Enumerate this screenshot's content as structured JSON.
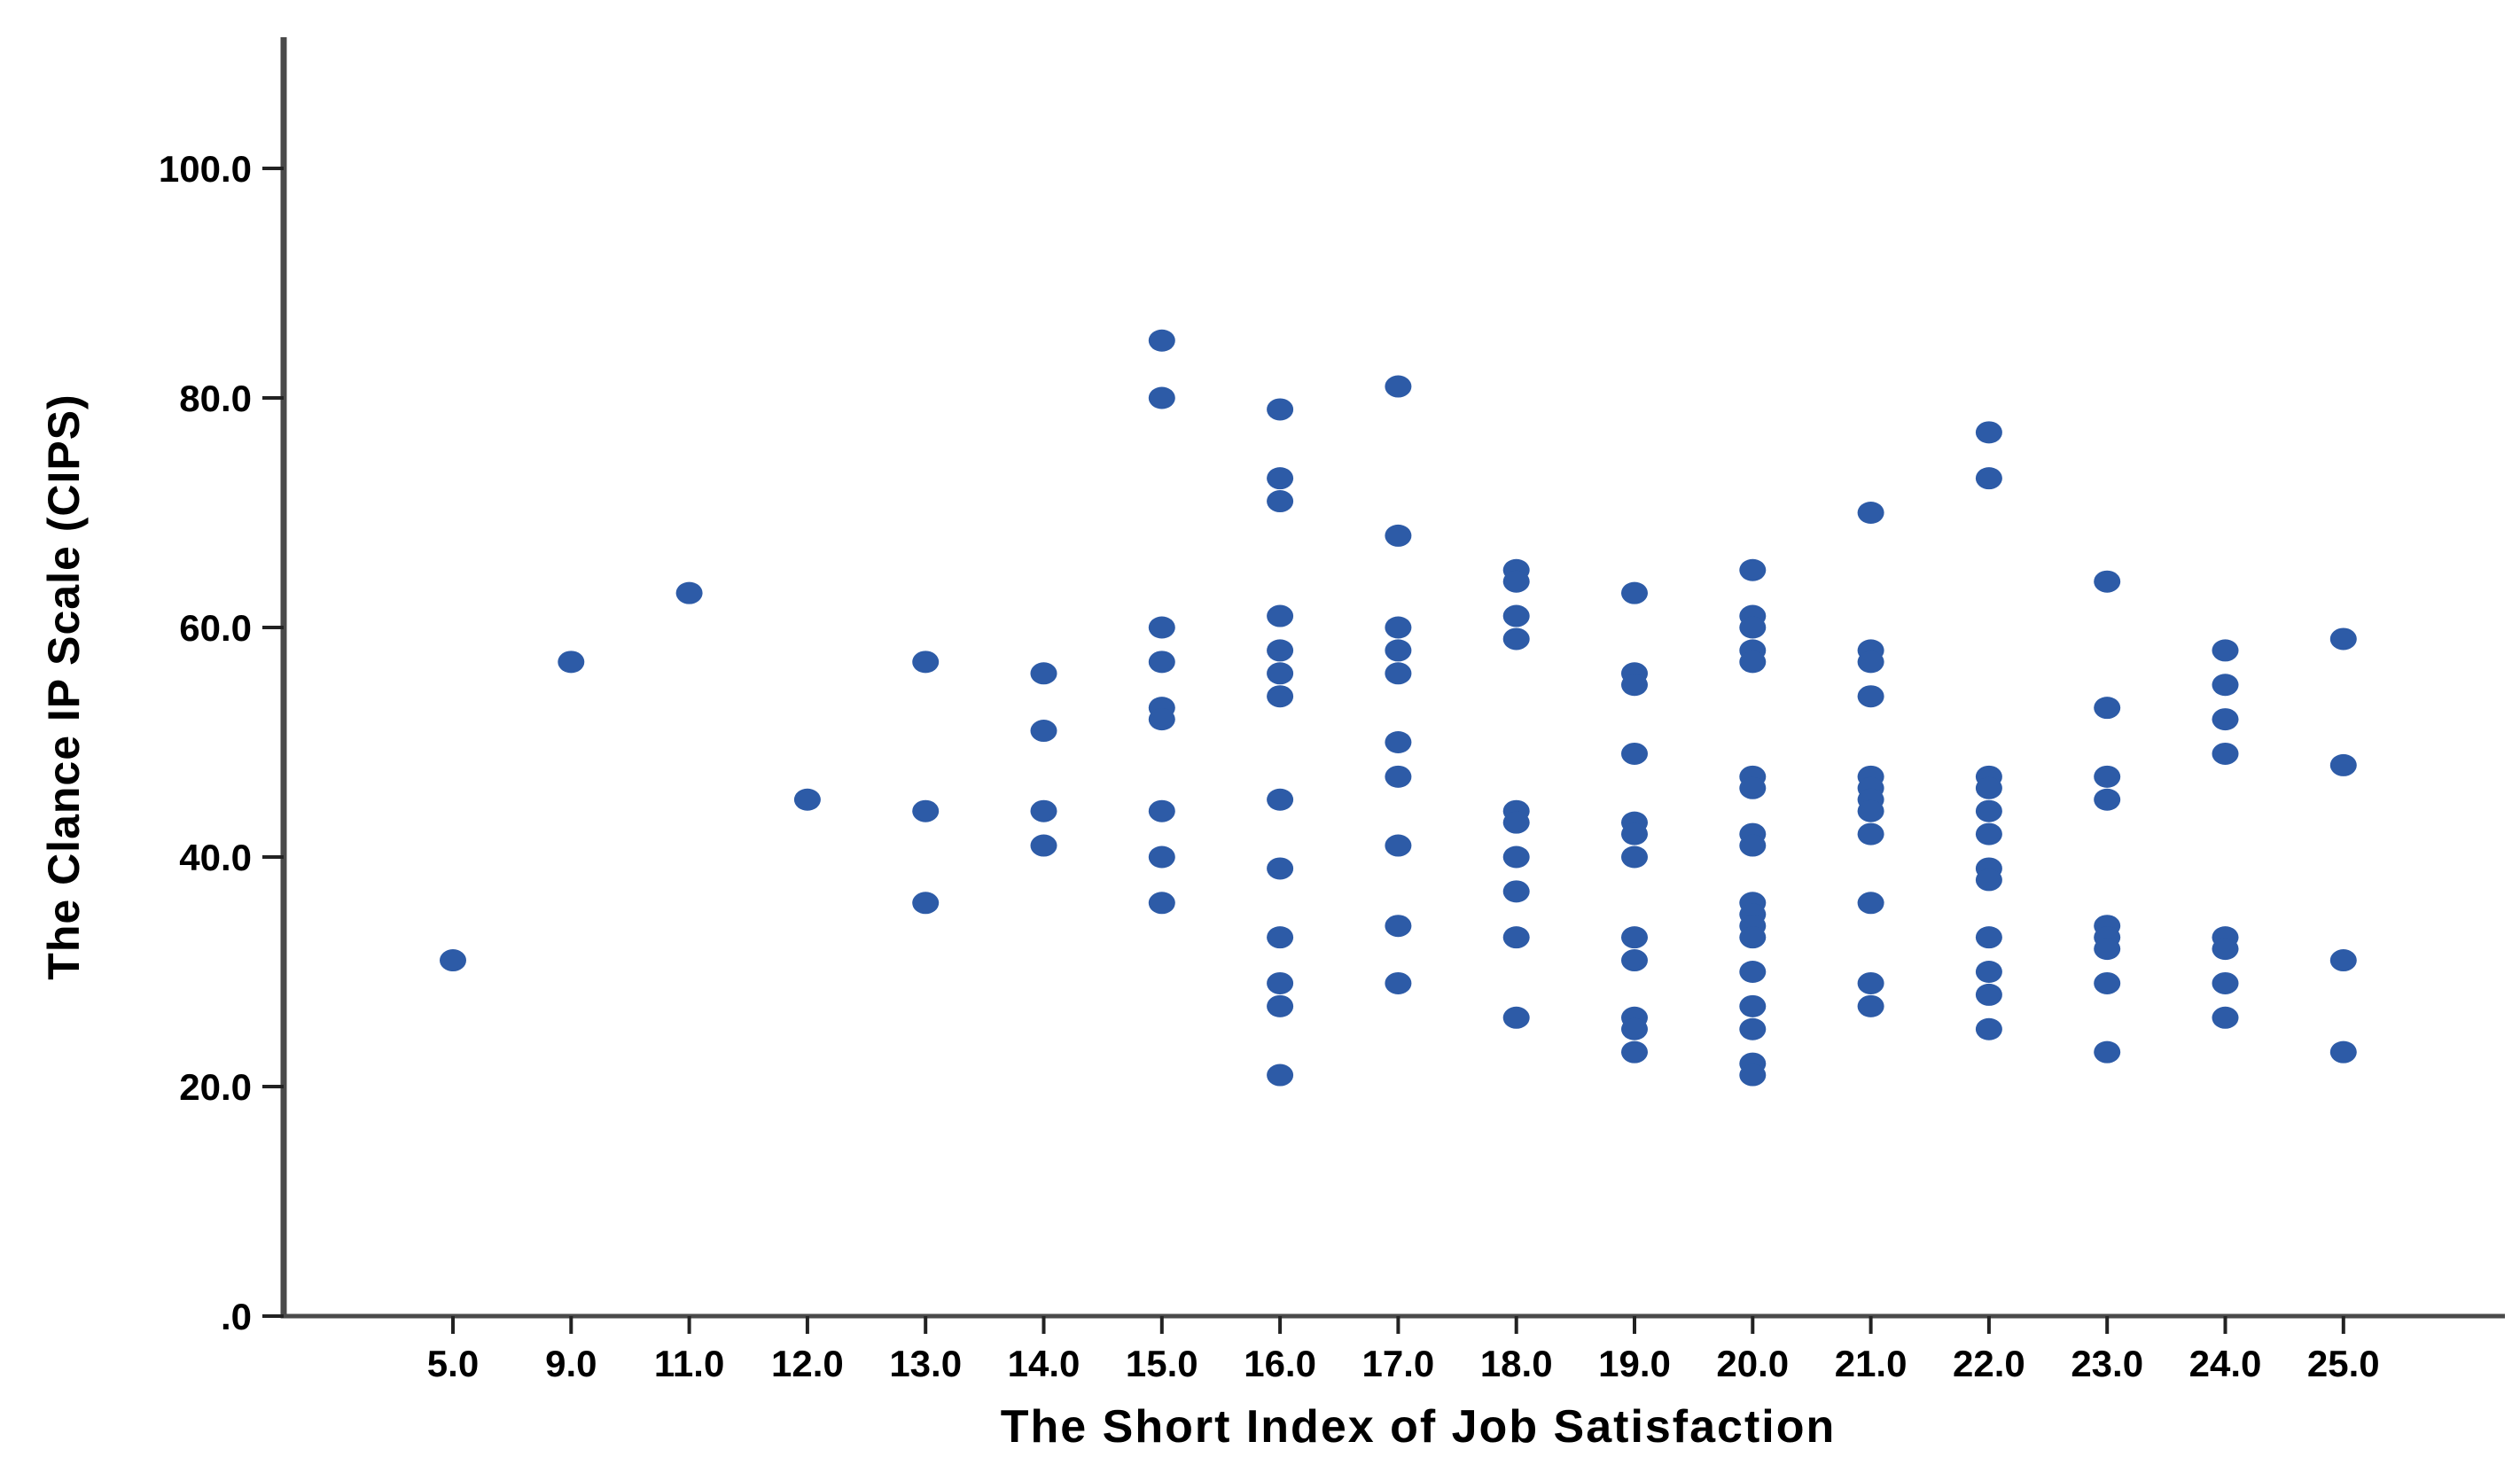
{
  "chart_data": {
    "type": "scatter",
    "title": "",
    "xlabel": "The Short Index of Job Satisfaction",
    "ylabel": "The Clance IP Scale (CIPS)",
    "x_axis_type": "categorical",
    "grid": false,
    "legend": "none",
    "marker_color": "#2d5ba7",
    "axis_color": "#4a4a4a",
    "ylim": [
      0,
      110
    ],
    "y_ticks": [
      {
        "value": 0,
        "label": ".0"
      },
      {
        "value": 20,
        "label": "20.0"
      },
      {
        "value": 40,
        "label": "40.0"
      },
      {
        "value": 60,
        "label": "60.0"
      },
      {
        "value": 80,
        "label": "80.0"
      },
      {
        "value": 100,
        "label": "100.0"
      }
    ],
    "x_ticks": [
      "5.0",
      "9.0",
      "11.0",
      "12.0",
      "13.0",
      "14.0",
      "15.0",
      "16.0",
      "17.0",
      "18.0",
      "19.0",
      "20.0",
      "21.0",
      "22.0",
      "23.0",
      "24.0",
      "25.0"
    ],
    "groups": [
      {
        "x": "5.0",
        "values": [
          31
        ]
      },
      {
        "x": "9.0",
        "values": [
          57
        ]
      },
      {
        "x": "11.0",
        "values": [
          63
        ]
      },
      {
        "x": "12.0",
        "values": [
          45
        ]
      },
      {
        "x": "13.0",
        "values": [
          57,
          44,
          36
        ]
      },
      {
        "x": "14.0",
        "values": [
          56,
          51,
          44,
          41
        ]
      },
      {
        "x": "15.0",
        "values": [
          85,
          80,
          60,
          57,
          53,
          52,
          44,
          40,
          36
        ]
      },
      {
        "x": "16.0",
        "values": [
          79,
          73,
          71,
          61,
          58,
          56,
          54,
          45,
          39,
          33,
          29,
          27,
          21
        ]
      },
      {
        "x": "17.0",
        "values": [
          81,
          68,
          60,
          58,
          56,
          50,
          47,
          41,
          34,
          29
        ]
      },
      {
        "x": "18.0",
        "values": [
          65,
          64,
          61,
          59,
          44,
          43,
          40,
          37,
          33,
          26
        ]
      },
      {
        "x": "19.0",
        "values": [
          63,
          56,
          55,
          49,
          43,
          42,
          40,
          33,
          31,
          26,
          25,
          23
        ]
      },
      {
        "x": "20.0",
        "values": [
          65,
          61,
          60,
          58,
          57,
          47,
          46,
          42,
          41,
          36,
          35,
          34,
          33,
          30,
          27,
          25,
          22,
          21
        ]
      },
      {
        "x": "21.0",
        "values": [
          70,
          58,
          57,
          54,
          47,
          46,
          45,
          44,
          42,
          36,
          29,
          27
        ]
      },
      {
        "x": "22.0",
        "values": [
          77,
          73,
          47,
          46,
          44,
          42,
          39,
          38,
          33,
          30,
          28,
          25
        ]
      },
      {
        "x": "23.0",
        "values": [
          64,
          53,
          47,
          45,
          34,
          33,
          32,
          29,
          23
        ]
      },
      {
        "x": "24.0",
        "values": [
          58,
          55,
          52,
          49,
          33,
          32,
          29,
          26
        ]
      },
      {
        "x": "25.0",
        "values": [
          59,
          48,
          31,
          23
        ]
      }
    ]
  }
}
